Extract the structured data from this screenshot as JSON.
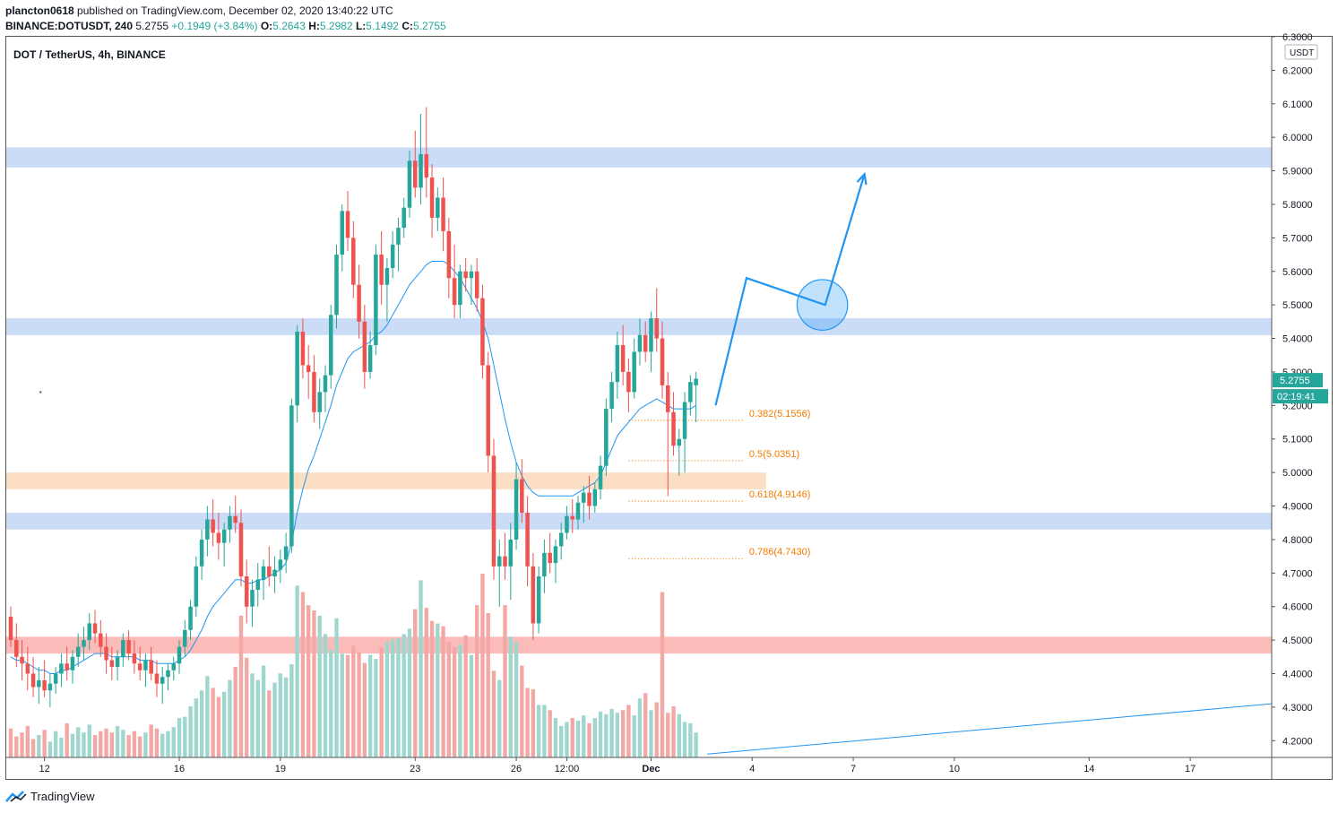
{
  "header": {
    "publisher": "plancton0618",
    "published_text": "published on TradingView.com, December 02, 2020 13:40:22 UTC",
    "symbol": "BINANCE:DOTUSDT, 240",
    "last": "5.2755",
    "change": "+0.1949 (+3.84%)",
    "o_label": "O:",
    "o": "5.2643",
    "h_label": "H:",
    "h": "5.2982",
    "l_label": "L:",
    "l": "5.1492",
    "c_label": "C:",
    "c": "5.2755"
  },
  "footer": {
    "brand": "TradingView"
  },
  "colors": {
    "up": "#26a69a",
    "down": "#ef5350",
    "vol_up": "#9fd7cf",
    "vol_down": "#f3a8a6",
    "ma": "#2196f3",
    "blue_zone": "#c8daf7",
    "orange_zone": "#fbdcc0",
    "red_zone": "#fbb7b5",
    "fib": "#f57c00",
    "arrow": "#2196f3"
  },
  "chart_data": {
    "type": "candlestick",
    "title": "DOT / TetherUS, 4h, BINANCE",
    "y_axis": {
      "unit": "USDT",
      "range": [
        4.15,
        6.3
      ],
      "ticks": [
        "6.3000",
        "6.2000",
        "6.1000",
        "6.0000",
        "5.9000",
        "5.8000",
        "5.7000",
        "5.6000",
        "5.5000",
        "5.4000",
        "5.3000",
        "5.2000",
        "5.1000",
        "5.0000",
        "4.9000",
        "4.8000",
        "4.7000",
        "4.6000",
        "4.5000",
        "4.4000",
        "4.3000",
        "4.2000"
      ],
      "last_price_label": "5.2755",
      "countdown_label": "02:19:41"
    },
    "x_axis": {
      "ticks": [
        {
          "label": "12",
          "bar": 6
        },
        {
          "label": "16",
          "bar": 30
        },
        {
          "label": "19",
          "bar": 48
        },
        {
          "label": "23",
          "bar": 72
        },
        {
          "label": "26",
          "bar": 90
        },
        {
          "label": "12:00",
          "bar": 99
        },
        {
          "label": "Dec",
          "bar": 114
        },
        {
          "label": "4",
          "bar": 132
        },
        {
          "label": "7",
          "bar": 150
        },
        {
          "label": "10",
          "bar": 168
        },
        {
          "label": "14",
          "bar": 192
        },
        {
          "label": "17",
          "bar": 210
        }
      ],
      "range_bars": [
        -0.8,
        224.5
      ]
    },
    "candles": [
      [
        4.57,
        4.6,
        4.48,
        4.5
      ],
      [
        4.5,
        4.55,
        4.42,
        4.45
      ],
      [
        4.45,
        4.5,
        4.38,
        4.43
      ],
      [
        4.43,
        4.48,
        4.35,
        4.4
      ],
      [
        4.4,
        4.45,
        4.33,
        4.36
      ],
      [
        4.36,
        4.42,
        4.31,
        4.38
      ],
      [
        4.38,
        4.44,
        4.33,
        4.35
      ],
      [
        4.35,
        4.4,
        4.3,
        4.37
      ],
      [
        4.37,
        4.42,
        4.34,
        4.4
      ],
      [
        4.4,
        4.46,
        4.36,
        4.43
      ],
      [
        4.43,
        4.48,
        4.38,
        4.41
      ],
      [
        4.41,
        4.47,
        4.37,
        4.45
      ],
      [
        4.45,
        4.52,
        4.42,
        4.48
      ],
      [
        4.48,
        4.54,
        4.44,
        4.5
      ],
      [
        4.5,
        4.58,
        4.47,
        4.55
      ],
      [
        4.55,
        4.59,
        4.49,
        4.52
      ],
      [
        4.52,
        4.56,
        4.45,
        4.48
      ],
      [
        4.48,
        4.52,
        4.4,
        4.44
      ],
      [
        4.44,
        4.48,
        4.38,
        4.42
      ],
      [
        4.42,
        4.47,
        4.38,
        4.45
      ],
      [
        4.45,
        4.52,
        4.42,
        4.5
      ],
      [
        4.5,
        4.53,
        4.44,
        4.46
      ],
      [
        4.46,
        4.5,
        4.4,
        4.43
      ],
      [
        4.43,
        4.48,
        4.38,
        4.41
      ],
      [
        4.41,
        4.46,
        4.36,
        4.44
      ],
      [
        4.44,
        4.48,
        4.38,
        4.4
      ],
      [
        4.4,
        4.44,
        4.33,
        4.37
      ],
      [
        4.37,
        4.42,
        4.31,
        4.39
      ],
      [
        4.39,
        4.43,
        4.35,
        4.41
      ],
      [
        4.41,
        4.45,
        4.38,
        4.43
      ],
      [
        4.43,
        4.5,
        4.4,
        4.48
      ],
      [
        4.48,
        4.56,
        4.45,
        4.53
      ],
      [
        4.53,
        4.62,
        4.5,
        4.6
      ],
      [
        4.6,
        4.75,
        4.57,
        4.72
      ],
      [
        4.72,
        4.83,
        4.68,
        4.8
      ],
      [
        4.8,
        4.9,
        4.75,
        4.86
      ],
      [
        4.86,
        4.92,
        4.78,
        4.82
      ],
      [
        4.82,
        4.88,
        4.74,
        4.79
      ],
      [
        4.79,
        4.85,
        4.72,
        4.83
      ],
      [
        4.83,
        4.9,
        4.79,
        4.87
      ],
      [
        4.87,
        4.93,
        4.82,
        4.85
      ],
      [
        4.85,
        4.89,
        4.66,
        4.69
      ],
      [
        4.69,
        4.74,
        4.55,
        4.6
      ],
      [
        4.6,
        4.68,
        4.54,
        4.65
      ],
      [
        4.65,
        4.73,
        4.6,
        4.68
      ],
      [
        4.68,
        4.74,
        4.62,
        4.72
      ],
      [
        4.72,
        4.78,
        4.66,
        4.69
      ],
      [
        4.69,
        4.75,
        4.64,
        4.71
      ],
      [
        4.71,
        4.77,
        4.67,
        4.74
      ],
      [
        4.74,
        4.82,
        4.7,
        4.78
      ],
      [
        4.78,
        5.22,
        4.76,
        5.2
      ],
      [
        5.2,
        5.44,
        5.15,
        5.42
      ],
      [
        5.42,
        5.46,
        5.28,
        5.32
      ],
      [
        5.32,
        5.38,
        5.22,
        5.3
      ],
      [
        5.3,
        5.35,
        5.15,
        5.18
      ],
      [
        5.18,
        5.28,
        5.13,
        5.24
      ],
      [
        5.24,
        5.32,
        5.18,
        5.29
      ],
      [
        5.29,
        5.5,
        5.25,
        5.47
      ],
      [
        5.47,
        5.68,
        5.43,
        5.65
      ],
      [
        5.65,
        5.8,
        5.6,
        5.78
      ],
      [
        5.78,
        5.84,
        5.66,
        5.7
      ],
      [
        5.7,
        5.75,
        5.52,
        5.56
      ],
      [
        5.56,
        5.62,
        5.4,
        5.45
      ],
      [
        5.45,
        5.5,
        5.25,
        5.3
      ],
      [
        5.3,
        5.42,
        5.28,
        5.38
      ],
      [
        5.38,
        5.68,
        5.35,
        5.65
      ],
      [
        5.65,
        5.72,
        5.5,
        5.56
      ],
      [
        5.56,
        5.64,
        5.45,
        5.61
      ],
      [
        5.61,
        5.72,
        5.58,
        5.68
      ],
      [
        5.68,
        5.76,
        5.6,
        5.73
      ],
      [
        5.73,
        5.82,
        5.7,
        5.79
      ],
      [
        5.79,
        5.96,
        5.76,
        5.93
      ],
      [
        5.93,
        6.02,
        5.82,
        5.85
      ],
      [
        5.85,
        6.07,
        5.8,
        5.95
      ],
      [
        5.95,
        6.09,
        5.82,
        5.88
      ],
      [
        5.88,
        5.92,
        5.7,
        5.76
      ],
      [
        5.76,
        5.85,
        5.72,
        5.82
      ],
      [
        5.82,
        5.88,
        5.66,
        5.72
      ],
      [
        5.72,
        5.76,
        5.52,
        5.58
      ],
      [
        5.58,
        5.68,
        5.46,
        5.5
      ],
      [
        5.5,
        5.62,
        5.46,
        5.6
      ],
      [
        5.6,
        5.64,
        5.54,
        5.58
      ],
      [
        5.58,
        5.62,
        5.5,
        5.6
      ],
      [
        5.6,
        5.64,
        5.48,
        5.52
      ],
      [
        5.52,
        5.56,
        5.28,
        5.32
      ],
      [
        5.32,
        5.36,
        5.0,
        5.05
      ],
      [
        5.05,
        5.1,
        4.68,
        4.72
      ],
      [
        4.72,
        4.8,
        4.6,
        4.75
      ],
      [
        4.75,
        4.82,
        4.68,
        4.72
      ],
      [
        4.72,
        4.85,
        4.62,
        4.8
      ],
      [
        4.8,
        5.03,
        4.77,
        4.98
      ],
      [
        4.98,
        5.04,
        4.85,
        4.88
      ],
      [
        4.88,
        4.93,
        4.66,
        4.72
      ],
      [
        4.72,
        4.76,
        4.5,
        4.55
      ],
      [
        4.55,
        4.72,
        4.52,
        4.69
      ],
      [
        4.69,
        4.8,
        4.64,
        4.76
      ],
      [
        4.76,
        4.82,
        4.7,
        4.73
      ],
      [
        4.73,
        4.8,
        4.67,
        4.78
      ],
      [
        4.78,
        4.85,
        4.74,
        4.82
      ],
      [
        4.82,
        4.9,
        4.8,
        4.87
      ],
      [
        4.87,
        4.92,
        4.82,
        4.86
      ],
      [
        4.86,
        4.93,
        4.83,
        4.91
      ],
      [
        4.91,
        4.96,
        4.85,
        4.94
      ],
      [
        4.94,
        4.99,
        4.86,
        4.9
      ],
      [
        4.9,
        4.97,
        4.88,
        4.95
      ],
      [
        4.95,
        5.05,
        4.92,
        5.02
      ],
      [
        5.02,
        5.22,
        4.99,
        5.19
      ],
      [
        5.19,
        5.3,
        5.15,
        5.27
      ],
      [
        5.27,
        5.42,
        5.22,
        5.38
      ],
      [
        5.38,
        5.44,
        5.26,
        5.3
      ],
      [
        5.3,
        5.34,
        5.18,
        5.24
      ],
      [
        5.24,
        5.4,
        5.22,
        5.36
      ],
      [
        5.36,
        5.46,
        5.32,
        5.41
      ],
      [
        5.41,
        5.45,
        5.33,
        5.36
      ],
      [
        5.36,
        5.48,
        5.3,
        5.46
      ],
      [
        5.46,
        5.55,
        5.36,
        5.4
      ],
      [
        5.4,
        5.45,
        5.22,
        5.26
      ],
      [
        5.26,
        5.3,
        4.93,
        5.18
      ],
      [
        5.18,
        5.24,
        5.05,
        5.08
      ],
      [
        5.08,
        5.13,
        4.99,
        5.1
      ],
      [
        5.1,
        5.24,
        5.0,
        5.21
      ],
      [
        5.21,
        5.29,
        5.17,
        5.27
      ],
      [
        5.26,
        5.3,
        5.15,
        5.28
      ]
    ],
    "volume": [
      110,
      80,
      95,
      120,
      70,
      85,
      105,
      60,
      100,
      75,
      130,
      90,
      115,
      95,
      125,
      85,
      100,
      110,
      95,
      120,
      105,
      85,
      100,
      80,
      95,
      125,
      110,
      90,
      100,
      115,
      150,
      155,
      195,
      225,
      255,
      310,
      265,
      230,
      250,
      295,
      345,
      540,
      380,
      320,
      295,
      350,
      255,
      285,
      320,
      305,
      355,
      655,
      630,
      580,
      560,
      540,
      470,
      410,
      530,
      395,
      390,
      425,
      400,
      360,
      390,
      375,
      420,
      440,
      450,
      455,
      470,
      490,
      565,
      675,
      570,
      520,
      510,
      500,
      440,
      420,
      430,
      465,
      390,
      580,
      700,
      550,
      330,
      295,
      580,
      460,
      440,
      350,
      265,
      260,
      200,
      200,
      180,
      150,
      120,
      135,
      150,
      140,
      160,
      130,
      150,
      175,
      165,
      185,
      170,
      180,
      200,
      160,
      225,
      245,
      180,
      210,
      630,
      170,
      195,
      165,
      135,
      130,
      95
    ],
    "ma_20": [
      4.45,
      4.44,
      4.44,
      4.43,
      4.42,
      4.41,
      4.41,
      4.4,
      4.4,
      4.41,
      4.41,
      4.42,
      4.43,
      4.44,
      4.45,
      4.46,
      4.46,
      4.46,
      4.45,
      4.45,
      4.45,
      4.45,
      4.45,
      4.44,
      4.44,
      4.44,
      4.43,
      4.43,
      4.43,
      4.43,
      4.44,
      4.45,
      4.47,
      4.5,
      4.53,
      4.57,
      4.6,
      4.62,
      4.64,
      4.66,
      4.68,
      4.68,
      4.67,
      4.67,
      4.68,
      4.68,
      4.69,
      4.7,
      4.71,
      4.73,
      4.79,
      4.88,
      4.95,
      5.01,
      5.05,
      5.1,
      5.15,
      5.2,
      5.26,
      5.3,
      5.34,
      5.36,
      5.37,
      5.38,
      5.39,
      5.41,
      5.42,
      5.44,
      5.47,
      5.5,
      5.53,
      5.56,
      5.58,
      5.6,
      5.62,
      5.63,
      5.63,
      5.63,
      5.62,
      5.6,
      5.58,
      5.55,
      5.52,
      5.49,
      5.45,
      5.4,
      5.32,
      5.24,
      5.16,
      5.09,
      5.03,
      4.99,
      4.96,
      4.94,
      4.93,
      4.93,
      4.93,
      4.93,
      4.93,
      4.93,
      4.93,
      4.94,
      4.95,
      4.96,
      4.97,
      4.99,
      5.03,
      5.07,
      5.11,
      5.13,
      5.15,
      5.17,
      5.19,
      5.2,
      5.21,
      5.22,
      5.21,
      5.2,
      5.19,
      5.19,
      5.19,
      5.19,
      5.2
    ],
    "zones": [
      {
        "color": "blue",
        "from": 5.91,
        "to": 5.97
      },
      {
        "color": "blue",
        "from": 5.41,
        "to": 5.46
      },
      {
        "color": "orange",
        "from": 4.95,
        "to": 5.0,
        "end_bar": 134.5
      },
      {
        "color": "blue",
        "from": 4.83,
        "to": 4.88
      },
      {
        "color": "red",
        "from": 4.46,
        "to": 4.51
      }
    ],
    "fibonacci": [
      {
        "label": "0.382(5.1556)",
        "price": 5.1556
      },
      {
        "label": "0.5(5.0351)",
        "price": 5.0351
      },
      {
        "label": "0.618(4.9146)",
        "price": 4.9146
      },
      {
        "label": "0.786(4.7430)",
        "price": 4.743
      }
    ],
    "fib_range_bars": [
      110,
      130.5
    ],
    "projection_path": [
      [
        125.5,
        5.2
      ],
      [
        131,
        5.58
      ],
      [
        145,
        5.5
      ],
      [
        152,
        5.89
      ]
    ],
    "circle": {
      "bar": 144.5,
      "price": 5.5,
      "radius_bars": 4.5
    },
    "trendline": [
      [
        124,
        4.16
      ],
      [
        224.5,
        4.31
      ]
    ],
    "free_text_dot": {
      "bar": 5.3,
      "price": 5.24
    }
  }
}
